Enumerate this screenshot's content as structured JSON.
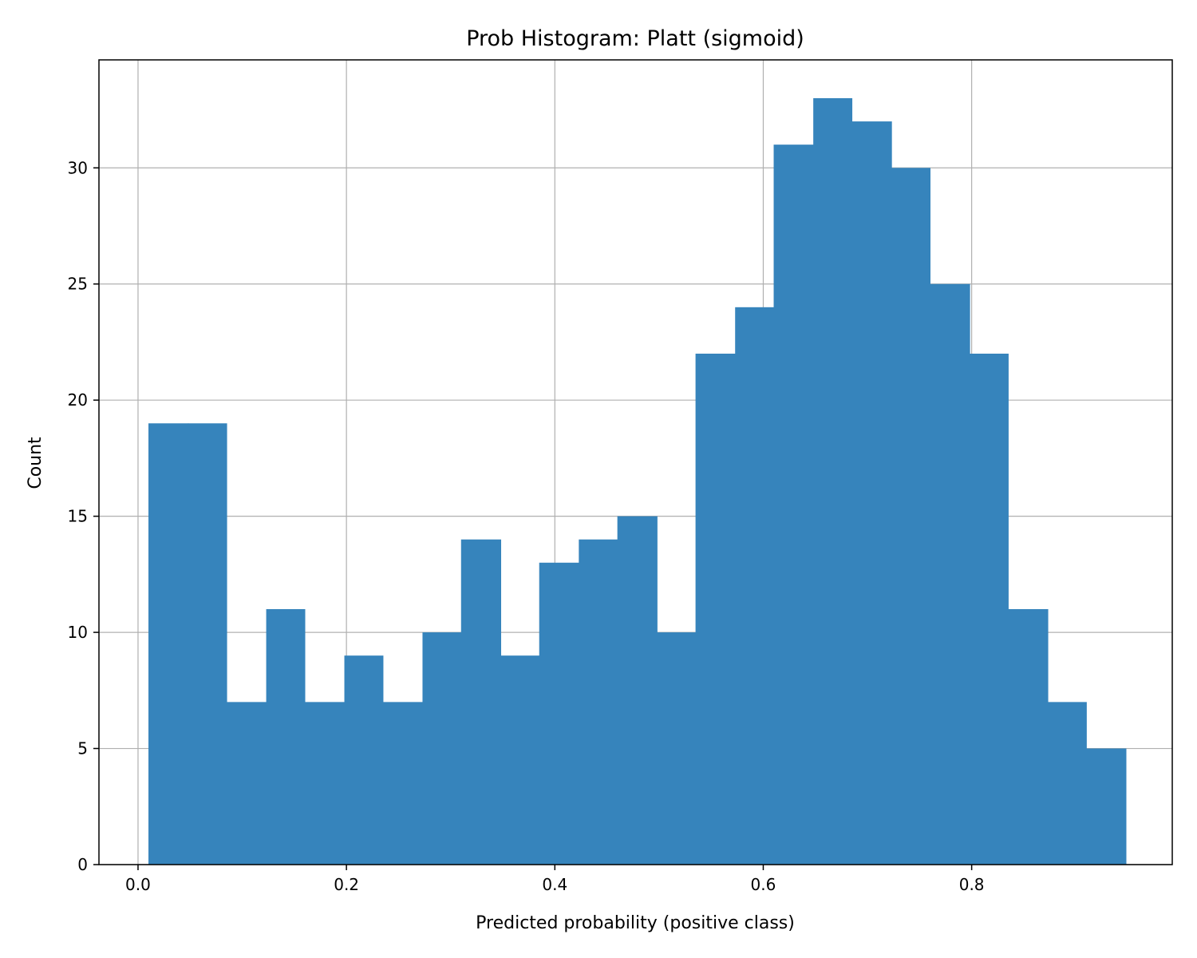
{
  "chart_data": {
    "type": "bar",
    "title": "Prob Histogram: Platt (sigmoid)",
    "xlabel": "Predicted probability (positive class)",
    "ylabel": "Count",
    "xlim": [
      -0.0375,
      0.9925
    ],
    "ylim": [
      0,
      34.65
    ],
    "xticks": [
      0.0,
      0.2,
      0.4,
      0.6,
      0.8
    ],
    "xtick_labels": [
      "0.0",
      "0.2",
      "0.4",
      "0.6",
      "0.8"
    ],
    "yticks": [
      0,
      5,
      10,
      15,
      20,
      25,
      30
    ],
    "ytick_labels": [
      "0",
      "5",
      "10",
      "15",
      "20",
      "25",
      "30"
    ],
    "grid": true,
    "bar_color": "#3684bc",
    "bin_edges": [
      0.01,
      0.048,
      0.085,
      0.123,
      0.16,
      0.198,
      0.235,
      0.273,
      0.31,
      0.348,
      0.385,
      0.423,
      0.46,
      0.498,
      0.535,
      0.573,
      0.61,
      0.648,
      0.685,
      0.723,
      0.76,
      0.798,
      0.835,
      0.873,
      0.91,
      0.948
    ],
    "counts": [
      19,
      19,
      7,
      11,
      7,
      9,
      7,
      10,
      14,
      9,
      13,
      14,
      15,
      10,
      22,
      24,
      31,
      33,
      32,
      30,
      25,
      22,
      11,
      7,
      5
    ]
  }
}
